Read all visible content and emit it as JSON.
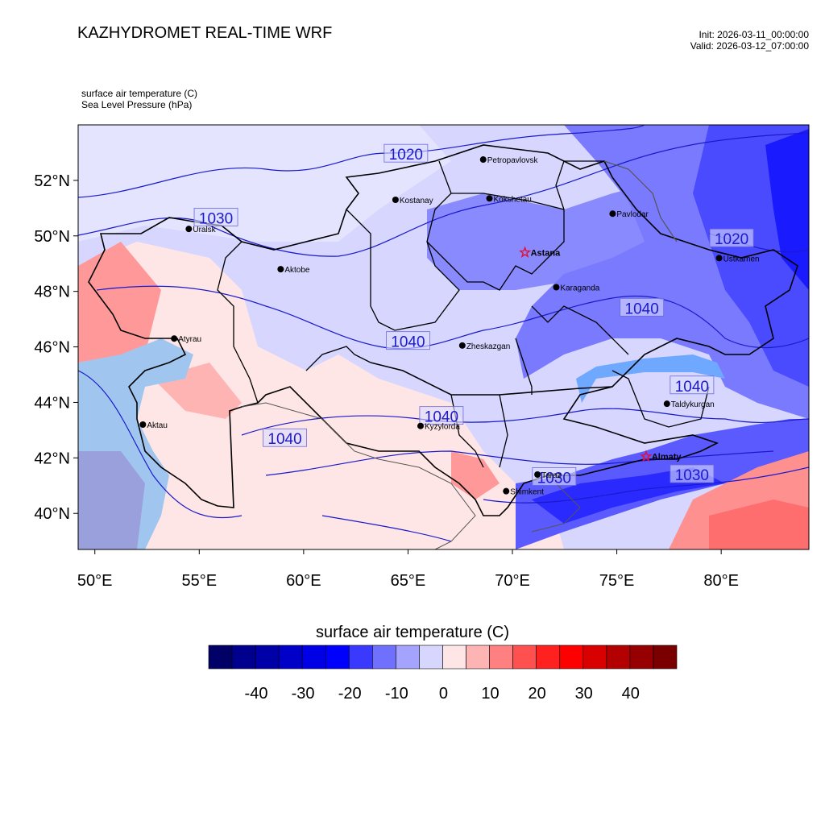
{
  "header": {
    "title": "KAZHYDROMET REAL-TIME WRF",
    "init": "Init: 2026-03-11_00:00:00",
    "valid": "Valid: 2026-03-12_07:00:00",
    "field1": "surface air temperature   (C)",
    "field2": "Sea Level Pressure   (hPa)"
  },
  "map": {
    "lon_range": [
      49.2,
      84.2
    ],
    "lat_range": [
      38.7,
      54.0
    ],
    "lon_ticks": [
      {
        "v": 50,
        "t": "50°E"
      },
      {
        "v": 55,
        "t": "55°E"
      },
      {
        "v": 60,
        "t": "60°E"
      },
      {
        "v": 65,
        "t": "65°E"
      },
      {
        "v": 70,
        "t": "70°E"
      },
      {
        "v": 75,
        "t": "75°E"
      },
      {
        "v": 80,
        "t": "80°E"
      }
    ],
    "lat_ticks": [
      {
        "v": 40,
        "t": "40°N"
      },
      {
        "v": 42,
        "t": "42°N"
      },
      {
        "v": 44,
        "t": "44°N"
      },
      {
        "v": 46,
        "t": "46°N"
      },
      {
        "v": 48,
        "t": "48°N"
      },
      {
        "v": 50,
        "t": "50°N"
      },
      {
        "v": 52,
        "t": "52°N"
      }
    ],
    "cities": [
      {
        "name": "Petropavlovsk",
        "lon": 68.6,
        "lat": 52.75,
        "type": "dot"
      },
      {
        "name": "Kostanay",
        "lon": 64.4,
        "lat": 51.3,
        "type": "dot"
      },
      {
        "name": "Kokshetau",
        "lon": 68.9,
        "lat": 51.35,
        "type": "dot"
      },
      {
        "name": "Pavlodar",
        "lon": 74.8,
        "lat": 50.8,
        "type": "dot"
      },
      {
        "name": "Uralsk",
        "lon": 54.5,
        "lat": 50.25,
        "type": "dot"
      },
      {
        "name": "Astana",
        "lon": 70.6,
        "lat": 49.4,
        "type": "star"
      },
      {
        "name": "Ustkamen",
        "lon": 79.9,
        "lat": 49.2,
        "type": "dot"
      },
      {
        "name": "Aktobe",
        "lon": 58.9,
        "lat": 48.8,
        "type": "dot"
      },
      {
        "name": "Karaganda",
        "lon": 72.1,
        "lat": 48.15,
        "type": "dot"
      },
      {
        "name": "Atyrau",
        "lon": 53.8,
        "lat": 46.3,
        "type": "dot"
      },
      {
        "name": "Zheskazgan",
        "lon": 67.6,
        "lat": 46.05,
        "type": "dot"
      },
      {
        "name": "Taldykurgan",
        "lon": 77.4,
        "lat": 43.95,
        "type": "dot"
      },
      {
        "name": "Aktau",
        "lon": 52.3,
        "lat": 43.2,
        "type": "dot"
      },
      {
        "name": "Kyzylorda",
        "lon": 65.6,
        "lat": 43.15,
        "type": "dot"
      },
      {
        "name": "Almaty",
        "lon": 76.4,
        "lat": 42.05,
        "type": "star"
      },
      {
        "name": "Taraz",
        "lon": 71.2,
        "lat": 41.4,
        "type": "dot"
      },
      {
        "name": "Shimkent",
        "lon": 69.7,
        "lat": 40.8,
        "type": "dot"
      }
    ],
    "isobar_labels": [
      {
        "t": "1020",
        "lon": 64.9,
        "lat": 52.95
      },
      {
        "t": "1030",
        "lon": 55.8,
        "lat": 50.65
      },
      {
        "t": "1040",
        "lon": 65.0,
        "lat": 46.2
      },
      {
        "t": "1040",
        "lon": 76.2,
        "lat": 47.4
      },
      {
        "t": "1040",
        "lon": 66.6,
        "lat": 43.5
      },
      {
        "t": "1040",
        "lon": 59.1,
        "lat": 42.7
      },
      {
        "t": "1040",
        "lon": 78.6,
        "lat": 44.6
      },
      {
        "t": "1030",
        "lon": 78.6,
        "lat": 41.4
      },
      {
        "t": "1030",
        "lon": 72.0,
        "lat": 41.3
      },
      {
        "t": "1020",
        "lon": 80.5,
        "lat": 49.9
      }
    ]
  },
  "colorbar": {
    "title": "surface air temperature  (C)",
    "colors": [
      "#000066",
      "#00008f",
      "#0000a8",
      "#0000c8",
      "#0000e6",
      "#0000ff",
      "#3a3aff",
      "#7070ff",
      "#a4a4ff",
      "#d6d6ff",
      "#ffe6e6",
      "#ffb4b4",
      "#ff8080",
      "#ff5050",
      "#ff2020",
      "#ff0000",
      "#d90000",
      "#b30000",
      "#960000",
      "#7a0000"
    ],
    "labels": [
      "-40",
      "-30",
      "-20",
      "-10",
      "0",
      "10",
      "20",
      "30",
      "40"
    ]
  }
}
